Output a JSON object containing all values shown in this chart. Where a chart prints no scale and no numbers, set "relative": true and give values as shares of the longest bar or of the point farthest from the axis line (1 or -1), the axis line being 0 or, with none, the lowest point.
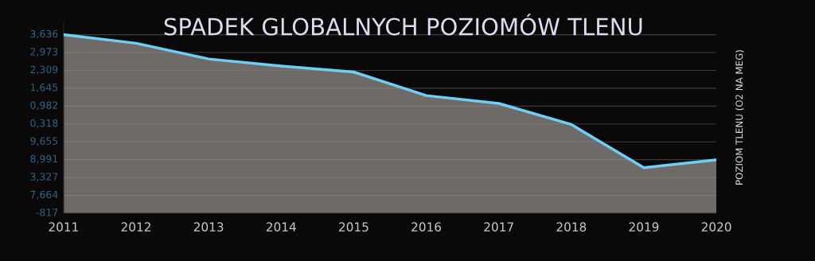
{
  "chart_data": {
    "type": "area",
    "title": "SPADEK GLOBALNYCH POZIOMÓW TLENU",
    "ylabel": "POZIOM TLENU (O2 NA MEG)",
    "x": [
      2011,
      2012,
      2013,
      2014,
      2015,
      2016,
      2017,
      2018,
      2019,
      2020
    ],
    "series": [
      {
        "color": "#6ccff6",
        "values": [
          1,
          0.952,
          0.864,
          0.824,
          0.791,
          0.659,
          0.615,
          0.497,
          0.255,
          0.299
        ]
      }
    ],
    "relative": true,
    "xlim": [
      2011,
      2020
    ],
    "xticks": [
      2011,
      2012,
      2013,
      2014,
      2015,
      2016,
      2017,
      2018,
      2019,
      2020
    ],
    "annotations": [
      "3,636",
      "2,973",
      "2,309",
      "1,645",
      "0,982",
      "0,318",
      "9,655",
      "8,991",
      "3,327",
      "7,664",
      "-817"
    ],
    "grid": "y",
    "legend": false,
    "marker": "none",
    "line_style": "solid"
  }
}
